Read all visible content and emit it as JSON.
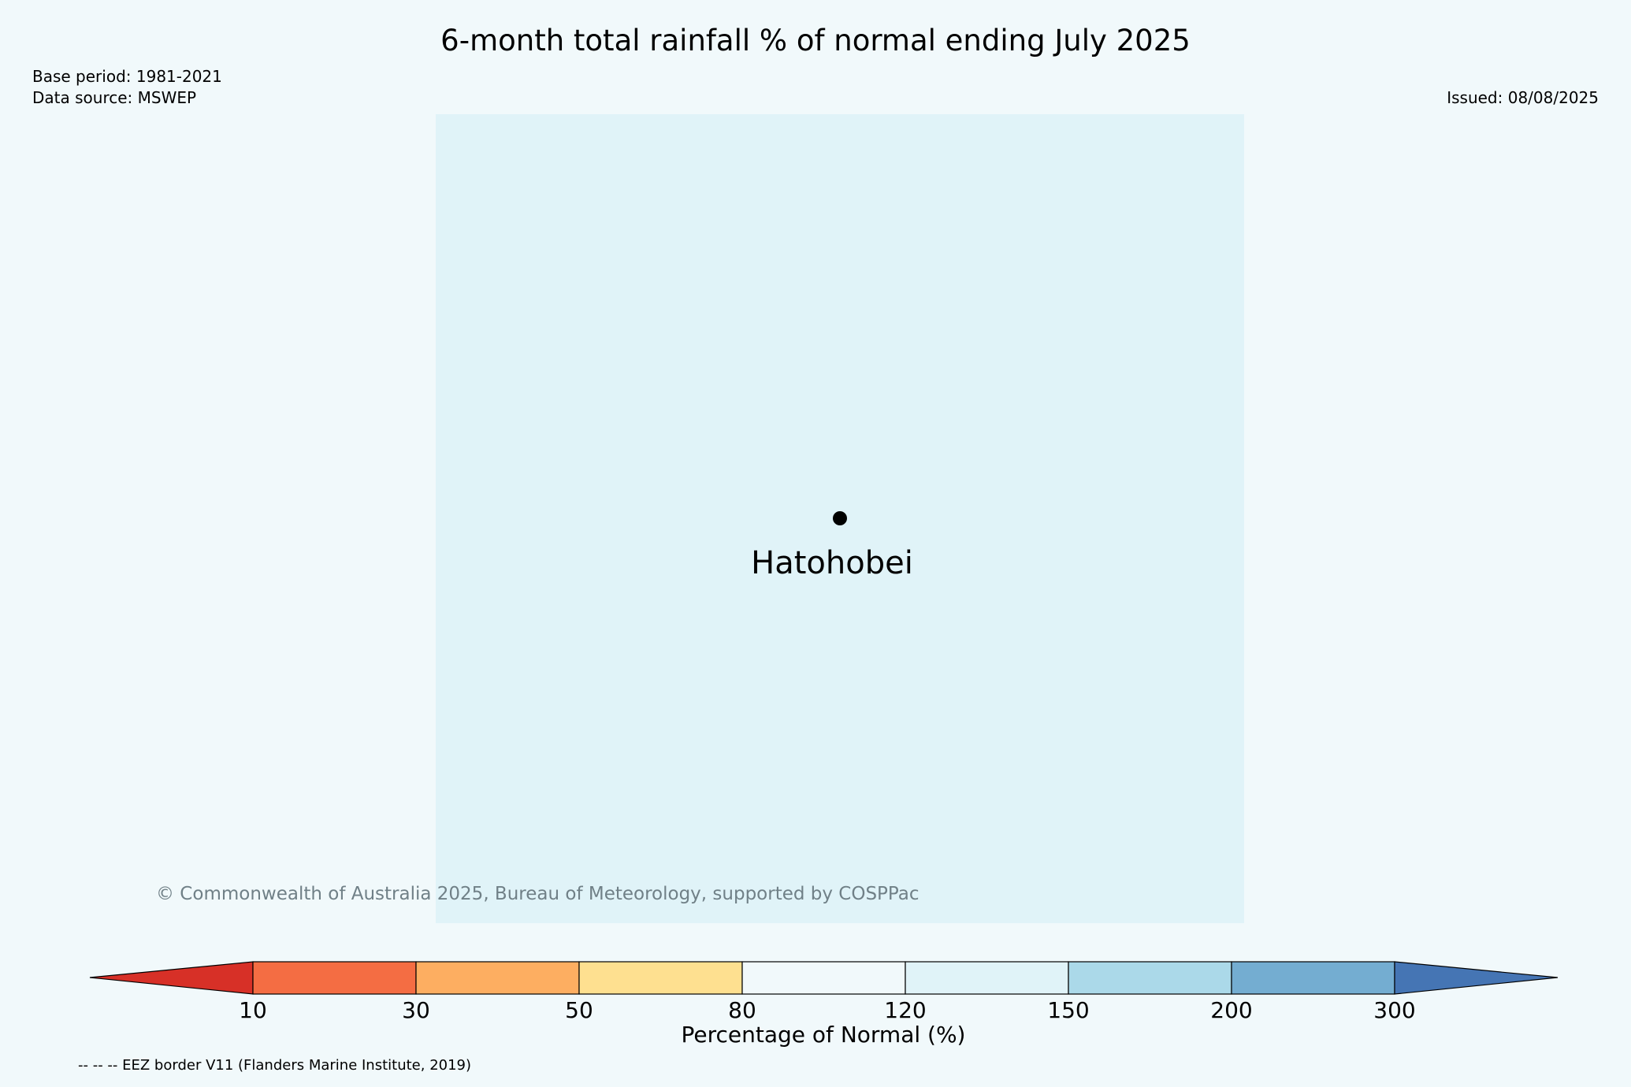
{
  "title": "6-month total rainfall % of normal ending July 2025",
  "base_period": "Base period: 1981-2021",
  "data_source": "Data source: MSWEP",
  "issued": "Issued: 08/08/2025",
  "location": {
    "name": "Hatohobei"
  },
  "copyright": "© Commonwealth of Australia 2025, Bureau of Meteorology, supported by COSPPac",
  "colorbar": {
    "label": "Percentage of Normal (%)",
    "ticks": [
      "10",
      "30",
      "50",
      "80",
      "120",
      "150",
      "200",
      "300"
    ],
    "colors": [
      "#d73027",
      "#f46d43",
      "#fdae61",
      "#fee090",
      "#f1f9fb",
      "#e0f3f8",
      "#abd9e9",
      "#74add1",
      "#4575b4"
    ]
  },
  "map_fill_color": "#e0f3f8",
  "eez_note": "-- -- -- EEZ border V11 (Flanders Marine Institute, 2019)"
}
